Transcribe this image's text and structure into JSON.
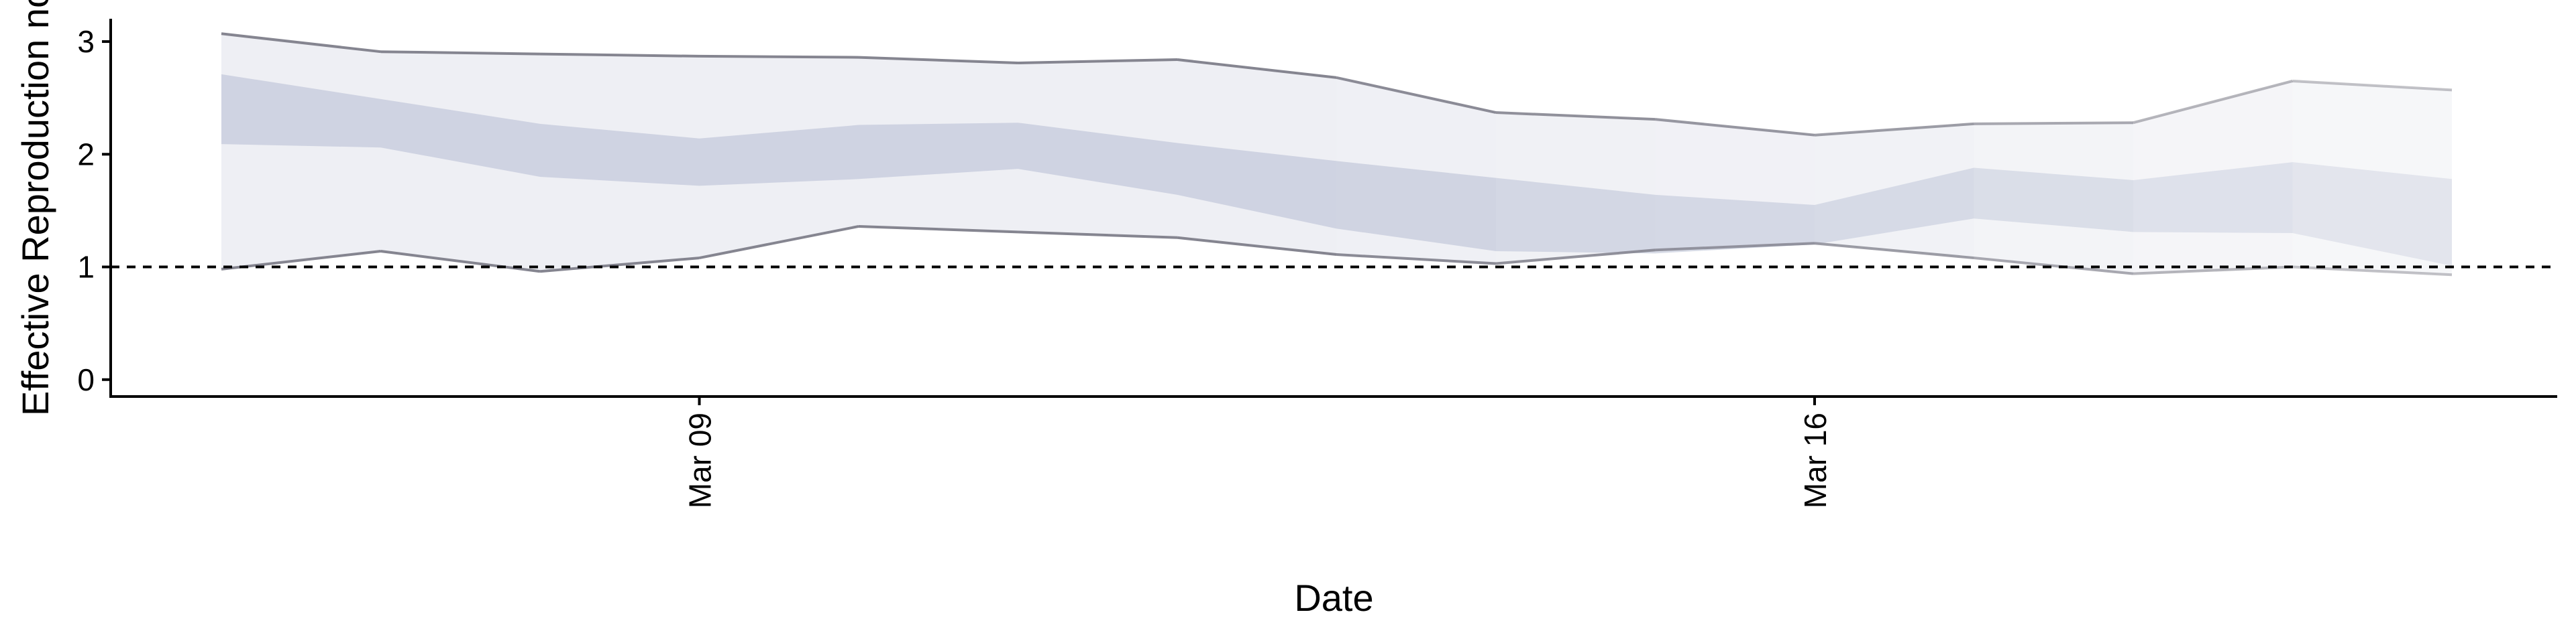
{
  "chart_data": {
    "type": "area",
    "xlabel": "Date",
    "ylabel": "Effective Reproduction no",
    "ylim": [
      -0.15,
      3.25
    ],
    "yticks": [
      0,
      1,
      2,
      3
    ],
    "xticks": [
      {
        "date": "2020-03-09",
        "label": "Mar 09"
      },
      {
        "date": "2020-03-16",
        "label": "Mar 16"
      }
    ],
    "reference_line": {
      "y": 1,
      "style": "dashed"
    },
    "grid": false,
    "legend": "none",
    "colors": {
      "outer_band": "#eeeff4",
      "inner_band": "#c9cede",
      "bound_line": "#858590",
      "axis": "#000000"
    },
    "x": [
      "2020-03-06",
      "2020-03-07",
      "2020-03-08",
      "2020-03-09",
      "2020-03-10",
      "2020-03-11",
      "2020-03-12",
      "2020-03-13",
      "2020-03-14",
      "2020-03-15",
      "2020-03-16",
      "2020-03-17",
      "2020-03-18",
      "2020-03-19",
      "2020-03-20"
    ],
    "outer_upper": [
      3.07,
      2.91,
      2.89,
      2.87,
      2.86,
      2.81,
      2.84,
      2.68,
      2.37,
      2.31,
      2.17,
      2.27,
      2.28,
      2.65,
      2.57
    ],
    "outer_lower": [
      0.98,
      1.14,
      0.96,
      1.08,
      1.36,
      1.31,
      1.26,
      1.11,
      1.03,
      1.15,
      1.21,
      1.08,
      0.94,
      1.0,
      0.93
    ],
    "inner_upper": [
      2.71,
      2.49,
      2.27,
      2.14,
      2.26,
      2.28,
      2.1,
      1.94,
      1.79,
      1.64,
      1.55,
      1.88,
      1.77,
      1.93,
      1.78
    ],
    "inner_lower": [
      2.09,
      2.06,
      1.8,
      1.72,
      1.78,
      1.87,
      1.64,
      1.34,
      1.14,
      1.12,
      1.2,
      1.43,
      1.31,
      1.3,
      1.01
    ],
    "confidence": [
      1,
      1,
      1,
      1,
      1,
      1,
      1,
      0.95,
      0.9,
      0.85,
      0.8,
      0.7,
      0.6,
      0.5,
      0.4
    ]
  }
}
